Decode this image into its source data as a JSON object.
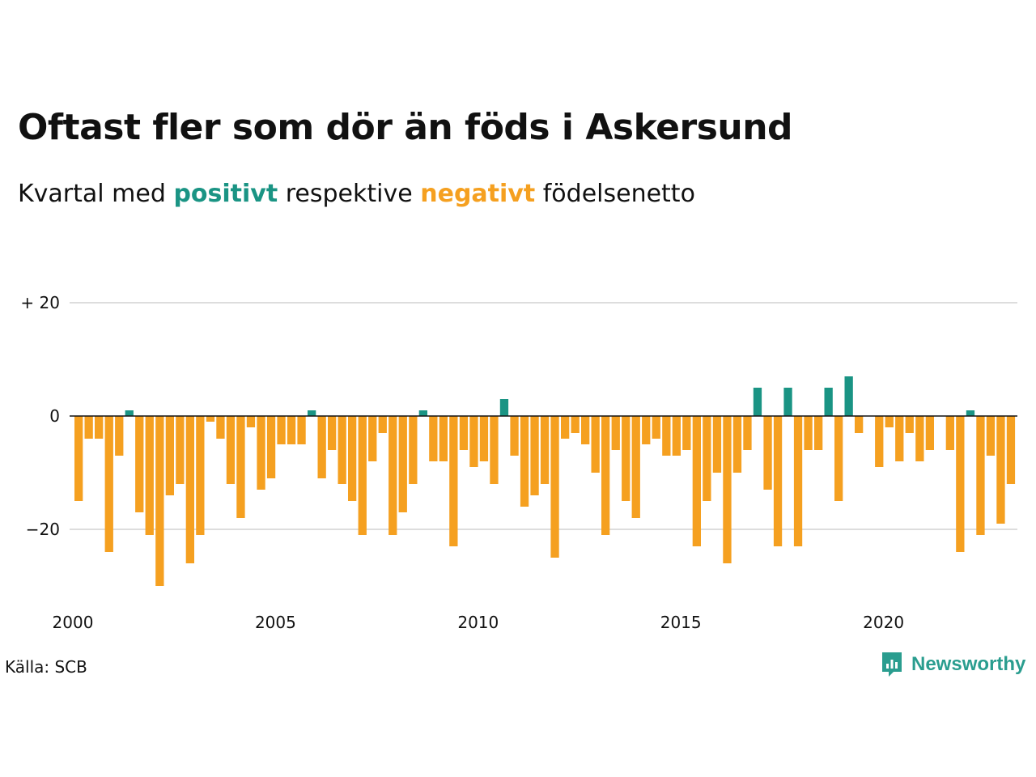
{
  "title": "Oftast fler som dör än föds i Askersund",
  "subtitle": {
    "prefix": "Kvartal med",
    "positive_word": "positivt",
    "middle": "respektive",
    "negative_word": "negativt",
    "suffix": "födelsenetto"
  },
  "source": "Källa: SCB",
  "brand": {
    "name": "Newsworthy",
    "icon": "newsworthy-logo-icon"
  },
  "colors": {
    "positive": "#1a9484",
    "negative": "#f5a020",
    "grid": "#dddddd",
    "brand": "#2a9d8f"
  },
  "chart_data": {
    "type": "bar",
    "x_start": "2000 Q1",
    "frequency": "quarter",
    "xticks": [
      "2000",
      "2005",
      "2010",
      "2015",
      "2020"
    ],
    "yticks": [
      {
        "value": 20,
        "label": "+ 20"
      },
      {
        "value": 0,
        "label": "0"
      },
      {
        "value": -20,
        "label": "−20"
      }
    ],
    "ylim": [
      -30,
      20
    ],
    "values": [
      -15,
      -4,
      -4,
      -24,
      -7,
      1,
      -17,
      -21,
      -30,
      -14,
      -12,
      -26,
      -21,
      -1,
      -4,
      -12,
      -18,
      -2,
      -13,
      -11,
      -5,
      -5,
      -5,
      1,
      -11,
      -6,
      -12,
      -15,
      -21,
      -8,
      -3,
      -21,
      -17,
      -12,
      1,
      -8,
      -8,
      -23,
      -6,
      -9,
      -8,
      -12,
      3,
      -7,
      -16,
      -14,
      -12,
      -25,
      -4,
      -3,
      -5,
      -10,
      -21,
      -6,
      -15,
      -18,
      -5,
      -4,
      -7,
      -7,
      -6,
      -23,
      -15,
      -10,
      -26,
      -10,
      -6,
      5,
      -13,
      -23,
      5,
      -23,
      -6,
      -6,
      5,
      -15,
      7,
      -3,
      0,
      -9,
      -2,
      -8,
      -3,
      -8,
      -6,
      0,
      -6,
      -24,
      1,
      -21,
      -7,
      -19,
      -12
    ]
  }
}
